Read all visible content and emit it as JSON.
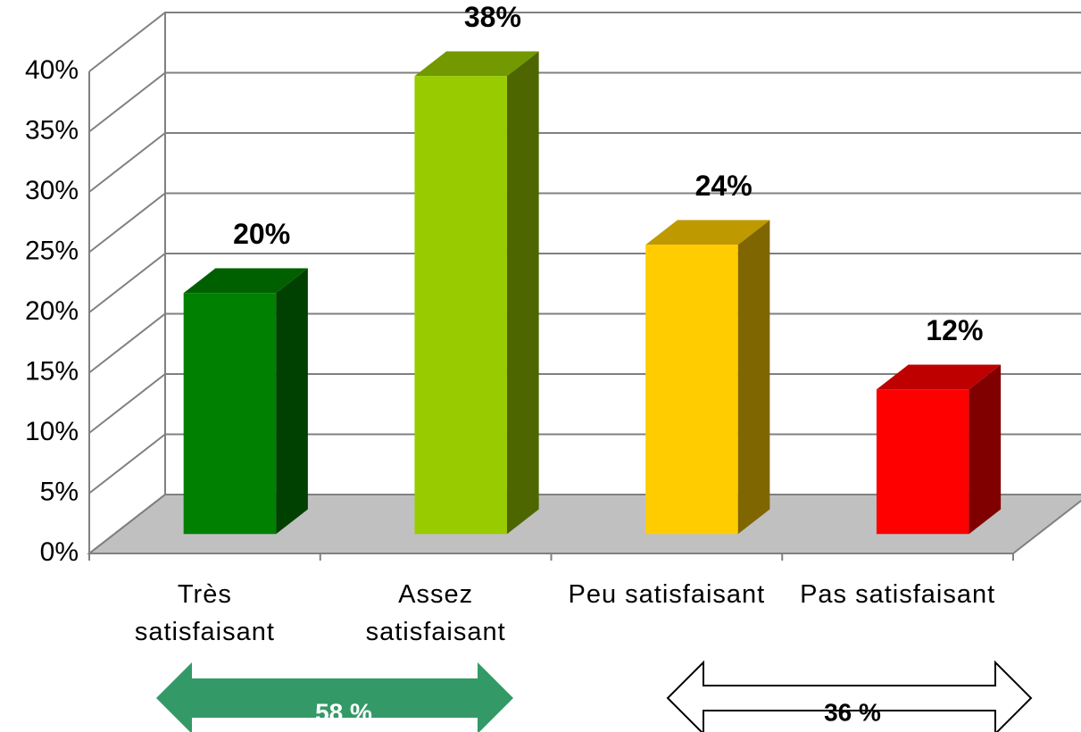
{
  "chart_data": {
    "type": "bar3d",
    "categories": [
      "Très satisfaisant",
      "Assez satisfaisant",
      "Peu satisfaisant",
      "Pas satisfaisant"
    ],
    "values": [
      20,
      38,
      24,
      12
    ],
    "value_labels": [
      "20%",
      "38%",
      "24%",
      "12%"
    ],
    "colors": [
      "#008000",
      "#99cc00",
      "#ffcc00",
      "#ff0000"
    ],
    "ylim": [
      0,
      40
    ],
    "yticks": [
      {
        "value": 0,
        "label": "0%"
      },
      {
        "value": 5,
        "label": "5%"
      },
      {
        "value": 10,
        "label": "10%"
      },
      {
        "value": 15,
        "label": "15%"
      },
      {
        "value": 20,
        "label": "20%"
      },
      {
        "value": 25,
        "label": "25%"
      },
      {
        "value": 30,
        "label": "30%"
      },
      {
        "value": 35,
        "label": "35%"
      },
      {
        "value": 40,
        "label": "40%"
      }
    ],
    "grid": true,
    "annotations": [
      "58 %",
      "36 %"
    ]
  }
}
